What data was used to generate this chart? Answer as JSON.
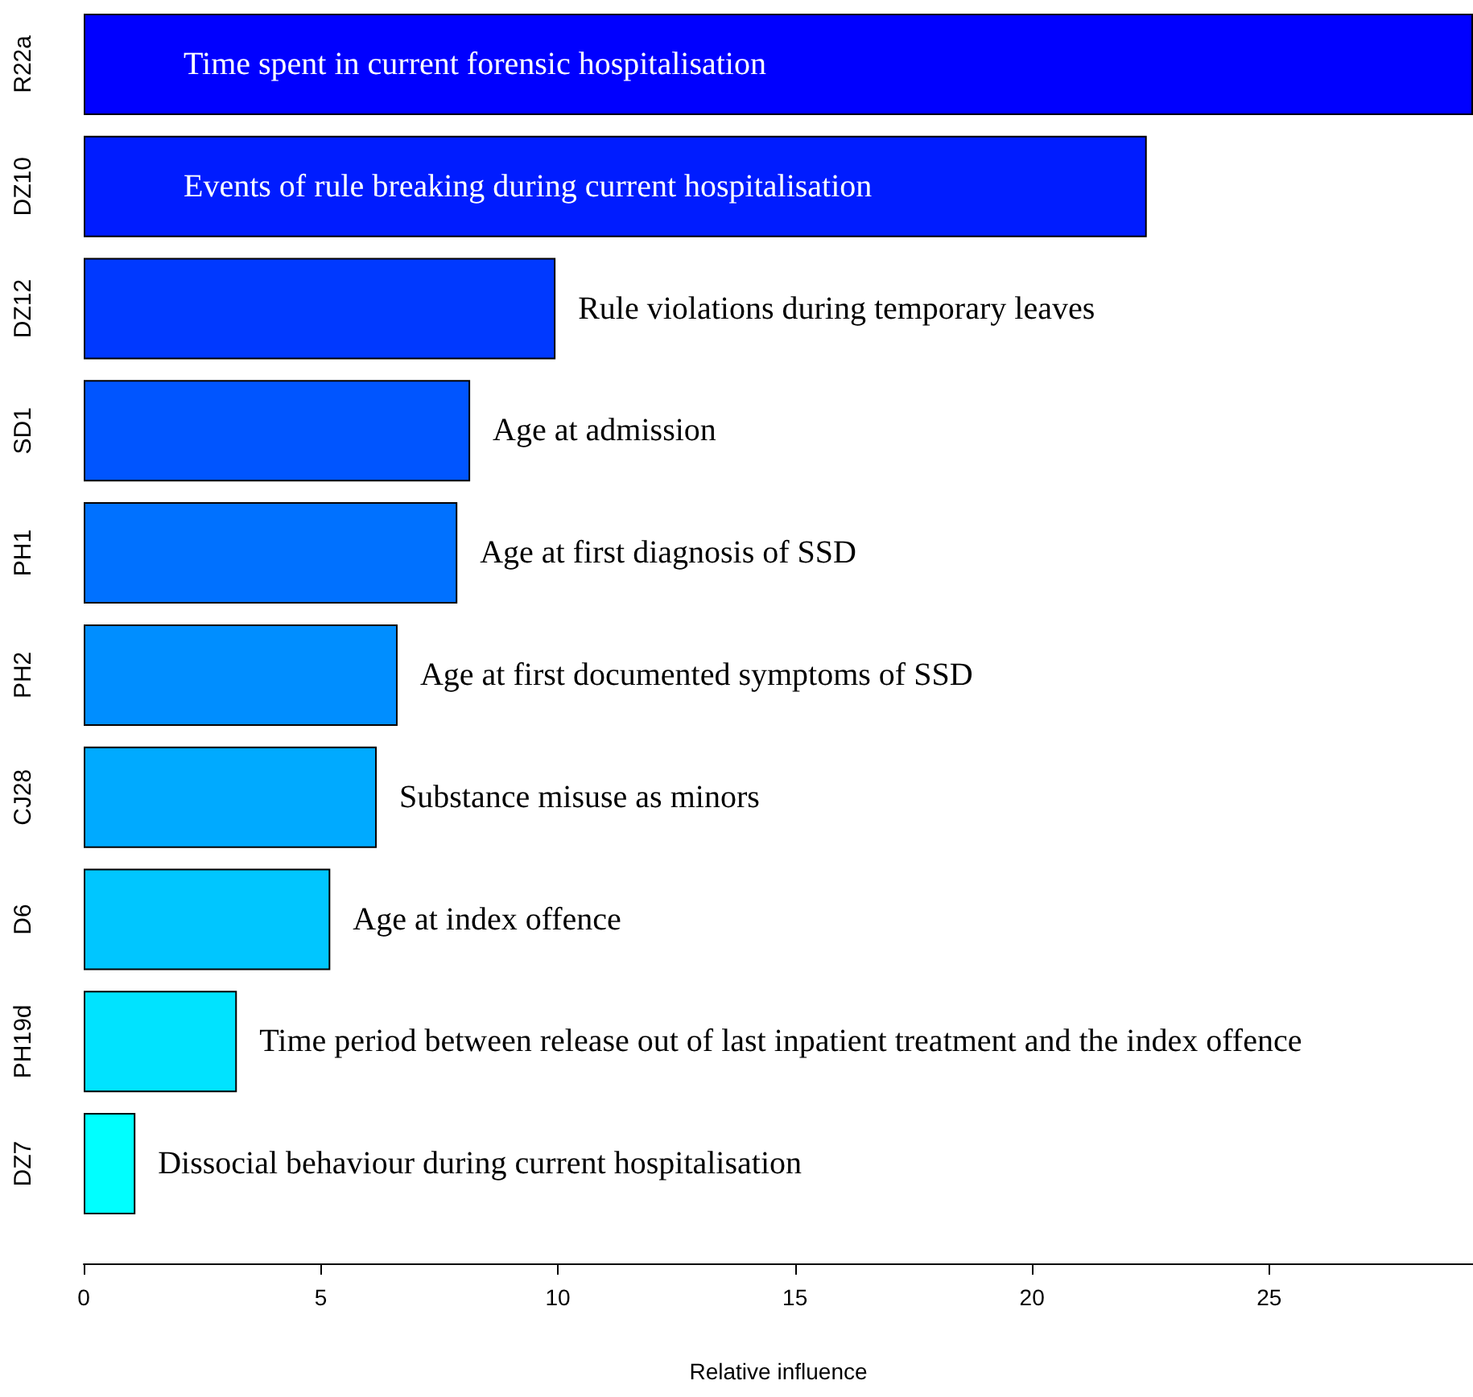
{
  "chart_data": {
    "type": "bar",
    "orientation": "horizontal",
    "xlabel": "Relative influence",
    "categories": [
      "R22a",
      "DZ10",
      "DZ12",
      "SD1",
      "PH1",
      "PH2",
      "CJ28",
      "D6",
      "PH19d",
      "DZ7"
    ],
    "values": [
      29.3,
      22.42,
      9.95,
      8.15,
      7.88,
      6.62,
      6.18,
      5.2,
      3.23,
      1.09
    ],
    "colors": [
      "#0000ff",
      "#001cff",
      "#0039ff",
      "#0055ff",
      "#0071ff",
      "#008eff",
      "#00aaff",
      "#00c6ff",
      "#00e3ff",
      "#00ffff"
    ],
    "xlim": [
      0,
      29.3
    ],
    "xticks": [
      0,
      5,
      10,
      15,
      20,
      25
    ],
    "grid": false,
    "annotations": [
      "Time spent in current forensic hospitalisation",
      "Events of rule breaking during current hospitalisation",
      "Rule violations during temporary leaves",
      "Age at admission",
      "Age at first diagnosis of SSD",
      "Age at first documented symptoms of SSD",
      "Substance misuse as minors",
      "Age at index offence",
      "Time period between release out of last inpatient treatment and the index offence",
      "Dissocial behaviour during current hospitalisation"
    ]
  }
}
